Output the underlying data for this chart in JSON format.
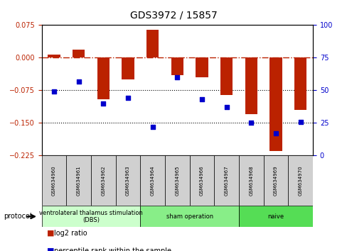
{
  "title": "GDS3972 / 15857",
  "samples": [
    "GSM634960",
    "GSM634961",
    "GSM634962",
    "GSM634963",
    "GSM634964",
    "GSM634965",
    "GSM634966",
    "GSM634967",
    "GSM634968",
    "GSM634969",
    "GSM634970"
  ],
  "log2_ratio": [
    0.008,
    0.018,
    -0.095,
    -0.05,
    0.065,
    -0.04,
    -0.045,
    -0.085,
    -0.13,
    -0.215,
    -0.12
  ],
  "percentile_rank": [
    49,
    57,
    40,
    44,
    22,
    60,
    43,
    37,
    25,
    17,
    26
  ],
  "bar_color": "#bb2200",
  "dot_color": "#0000cc",
  "ylim_left": [
    -0.225,
    0.075
  ],
  "ylim_right": [
    0,
    100
  ],
  "yticks_left": [
    0.075,
    0,
    -0.075,
    -0.15,
    -0.225
  ],
  "yticks_right": [
    100,
    75,
    50,
    25,
    0
  ],
  "hline_y": 0,
  "dotted_lines": [
    -0.075,
    -0.15
  ],
  "groups": [
    {
      "label": "ventrolateral thalamus stimulation\n(DBS)",
      "start": 0,
      "end": 3,
      "color": "#ccffcc"
    },
    {
      "label": "sham operation",
      "start": 4,
      "end": 7,
      "color": "#88ee88"
    },
    {
      "label": "naive",
      "start": 8,
      "end": 10,
      "color": "#55dd55"
    }
  ],
  "protocol_label": "protocol",
  "legend_items": [
    {
      "label": "log2 ratio",
      "color": "#bb2200"
    },
    {
      "label": "percentile rank within the sample",
      "color": "#0000cc"
    }
  ]
}
